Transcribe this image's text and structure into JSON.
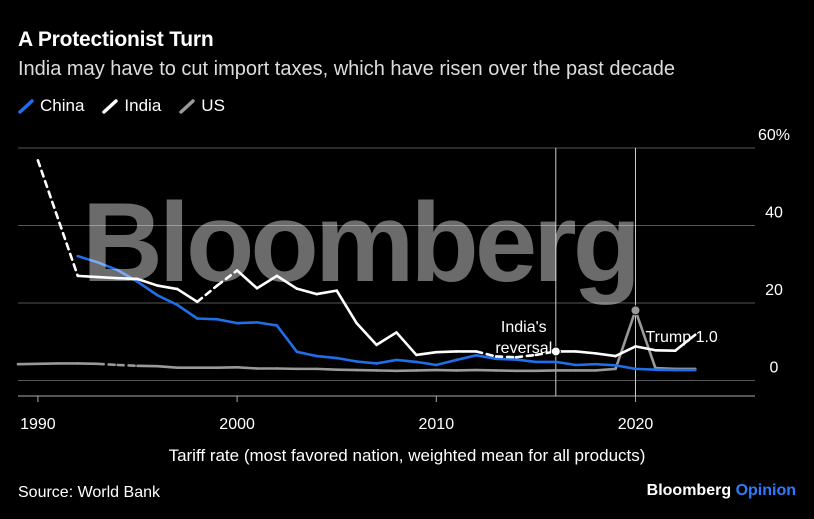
{
  "header": {
    "title": "A Protectionist Turn",
    "subtitle": "India may have to cut import taxes, which have risen over the past decade"
  },
  "legend": [
    {
      "label": "China",
      "color": "#1f6fe8"
    },
    {
      "label": "India",
      "color": "#ffffff"
    },
    {
      "label": "US",
      "color": "#999999"
    }
  ],
  "watermark": "Bloomberg",
  "footer": {
    "caption": "Tariff rate (most favored nation, weighted mean for all products)",
    "source": "Source: World Bank",
    "brand_main": "Bloomberg",
    "brand_accent": "Opinion"
  },
  "chart_data": {
    "type": "line",
    "xlim": [
      1989,
      2026
    ],
    "ylim": [
      -4,
      60
    ],
    "y_axis_position": "right",
    "x_ticks": [
      1990,
      2000,
      2010,
      2020
    ],
    "y_ticks": [
      0,
      20,
      40,
      60
    ],
    "y_tick_labels": [
      "0",
      "20",
      "40",
      "60%"
    ],
    "grid": "horizontal",
    "series": [
      {
        "name": "China",
        "color": "#1f6fe8",
        "points": [
          [
            1992,
            32.1
          ],
          [
            1993,
            30.5
          ],
          [
            1994,
            28.5
          ],
          [
            1995,
            25.5
          ],
          [
            1996,
            22
          ],
          [
            1997,
            19.5
          ],
          [
            1998,
            16
          ],
          [
            1999,
            15.8
          ],
          [
            2000,
            14.8
          ],
          [
            2001,
            15
          ],
          [
            2002,
            14.2
          ],
          [
            2003,
            7.4
          ],
          [
            2004,
            6.3
          ],
          [
            2005,
            5.8
          ],
          [
            2006,
            4.9
          ],
          [
            2007,
            4.4
          ],
          [
            2008,
            5.3
          ],
          [
            2009,
            4.8
          ],
          [
            2010,
            4
          ],
          [
            2011,
            5.3
          ],
          [
            2012,
            6.5
          ],
          [
            2013,
            5.6
          ],
          [
            2014,
            5.4
          ],
          [
            2015,
            4.8
          ],
          [
            2016,
            4.8
          ],
          [
            2017,
            4
          ],
          [
            2018,
            4.2
          ],
          [
            2019,
            3.9
          ],
          [
            2020,
            3
          ],
          [
            2021,
            2.8
          ],
          [
            2022,
            2.7
          ],
          [
            2023,
            2.7
          ]
        ]
      },
      {
        "name": "India",
        "color": "#ffffff",
        "points": [
          [
            1990,
            56.8
          ],
          [
            1992,
            27
          ],
          [
            1993,
            26.7
          ],
          [
            1994,
            26.4
          ],
          [
            1995,
            26.2
          ],
          [
            1996,
            24.5
          ],
          [
            1997,
            23.6
          ],
          [
            1998,
            20.3
          ],
          [
            1999,
            24.5
          ],
          [
            2000,
            28.4
          ],
          [
            2001,
            23.8
          ],
          [
            2002,
            27
          ],
          [
            2003,
            23.7
          ],
          [
            2004,
            22.3
          ],
          [
            2005,
            23.2
          ],
          [
            2006,
            14.8
          ],
          [
            2007,
            9.2
          ],
          [
            2008,
            12.4
          ],
          [
            2009,
            6.6
          ],
          [
            2010,
            7.3
          ],
          [
            2011,
            7.5
          ],
          [
            2012,
            7.5
          ],
          [
            2013,
            6.2
          ],
          [
            2014,
            6
          ],
          [
            2015,
            6.6
          ],
          [
            2016,
            7.5
          ],
          [
            2017,
            7.5
          ],
          [
            2018,
            7
          ],
          [
            2019,
            6.3
          ],
          [
            2020,
            8.8
          ],
          [
            2021,
            7.8
          ],
          [
            2022,
            7.7
          ],
          [
            2023,
            11.8
          ]
        ],
        "dashed_ranges": [
          [
            1990,
            1992
          ],
          [
            1998,
            2000
          ],
          [
            2012,
            2016
          ]
        ]
      },
      {
        "name": "US",
        "color": "#999999",
        "points": [
          [
            1989,
            4.2
          ],
          [
            1991,
            4.4
          ],
          [
            1992,
            4.4
          ],
          [
            1993,
            4.3
          ],
          [
            1994,
            4
          ],
          [
            1995,
            3.8
          ],
          [
            1996,
            3.7
          ],
          [
            1997,
            3.3
          ],
          [
            1998,
            3.3
          ],
          [
            1999,
            3.3
          ],
          [
            2000,
            3.4
          ],
          [
            2001,
            3.1
          ],
          [
            2002,
            3.1
          ],
          [
            2003,
            3
          ],
          [
            2004,
            3
          ],
          [
            2005,
            2.8
          ],
          [
            2006,
            2.7
          ],
          [
            2007,
            2.6
          ],
          [
            2008,
            2.5
          ],
          [
            2009,
            2.6
          ],
          [
            2010,
            2.7
          ],
          [
            2011,
            2.6
          ],
          [
            2012,
            2.7
          ],
          [
            2013,
            2.6
          ],
          [
            2014,
            2.5
          ],
          [
            2015,
            2.5
          ],
          [
            2016,
            2.6
          ],
          [
            2017,
            2.6
          ],
          [
            2018,
            2.6
          ],
          [
            2019,
            3
          ],
          [
            2020,
            18.1
          ],
          [
            2021,
            3.2
          ],
          [
            2022,
            3
          ],
          [
            2023,
            3
          ]
        ],
        "dashed_ranges": [
          [
            1993,
            1995
          ]
        ]
      }
    ],
    "annotations": [
      {
        "x": 2016,
        "label_lines": [
          "India's",
          "reversal"
        ],
        "marker_y": 7.5,
        "marker_color": "#ffffff"
      },
      {
        "x": 2020,
        "label_lines": [
          "Trump 1.0"
        ],
        "marker_y": 18.1,
        "marker_color": "#999999"
      }
    ]
  }
}
